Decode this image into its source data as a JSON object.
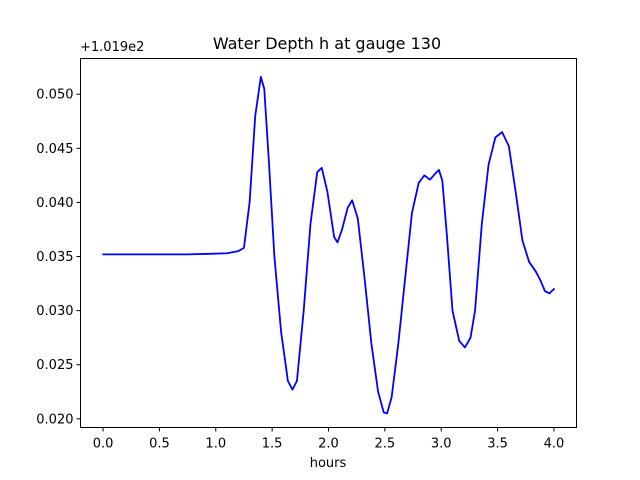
{
  "chart_data": {
    "type": "line",
    "title": "Water Depth h at gauge 130",
    "xlabel": "hours",
    "ylabel": "",
    "y_offset_label": "+1.019e2",
    "xlim": [
      -0.2,
      4.2
    ],
    "ylim": [
      0.0192,
      0.0533
    ],
    "grid": false,
    "legend": "none",
    "x_ticks": [
      0.0,
      0.5,
      1.0,
      1.5,
      2.0,
      2.5,
      3.0,
      3.5,
      4.0
    ],
    "x_tick_labels": [
      "0.0",
      "0.5",
      "1.0",
      "1.5",
      "2.0",
      "2.5",
      "3.0",
      "3.5",
      "4.0"
    ],
    "y_ticks": [
      0.02,
      0.025,
      0.03,
      0.035,
      0.04,
      0.045,
      0.05
    ],
    "y_tick_labels": [
      "0.020",
      "0.025",
      "0.030",
      "0.035",
      "0.040",
      "0.045",
      "0.050"
    ],
    "series": [
      {
        "color": "#0000ff",
        "points": [
          [
            0.0,
            0.0352
          ],
          [
            0.25,
            0.0352
          ],
          [
            0.5,
            0.0352
          ],
          [
            0.75,
            0.0352
          ],
          [
            0.95,
            0.03525
          ],
          [
            1.1,
            0.0353
          ],
          [
            1.2,
            0.0355
          ],
          [
            1.25,
            0.0358
          ],
          [
            1.3,
            0.04
          ],
          [
            1.35,
            0.048
          ],
          [
            1.4,
            0.0516
          ],
          [
            1.43,
            0.0505
          ],
          [
            1.47,
            0.044
          ],
          [
            1.52,
            0.035
          ],
          [
            1.58,
            0.028
          ],
          [
            1.64,
            0.0235
          ],
          [
            1.68,
            0.0227
          ],
          [
            1.72,
            0.0235
          ],
          [
            1.78,
            0.03
          ],
          [
            1.84,
            0.038
          ],
          [
            1.9,
            0.0428
          ],
          [
            1.94,
            0.0432
          ],
          [
            1.99,
            0.041
          ],
          [
            2.05,
            0.0368
          ],
          [
            2.08,
            0.0363
          ],
          [
            2.12,
            0.0375
          ],
          [
            2.17,
            0.0395
          ],
          [
            2.21,
            0.0402
          ],
          [
            2.26,
            0.0385
          ],
          [
            2.32,
            0.033
          ],
          [
            2.38,
            0.027
          ],
          [
            2.44,
            0.0225
          ],
          [
            2.49,
            0.0206
          ],
          [
            2.52,
            0.0205
          ],
          [
            2.56,
            0.022
          ],
          [
            2.62,
            0.027
          ],
          [
            2.68,
            0.033
          ],
          [
            2.74,
            0.039
          ],
          [
            2.8,
            0.0418
          ],
          [
            2.85,
            0.0425
          ],
          [
            2.9,
            0.0421
          ],
          [
            2.95,
            0.0427
          ],
          [
            2.98,
            0.043
          ],
          [
            3.01,
            0.042
          ],
          [
            3.05,
            0.037
          ],
          [
            3.1,
            0.03
          ],
          [
            3.16,
            0.0272
          ],
          [
            3.21,
            0.0266
          ],
          [
            3.26,
            0.0275
          ],
          [
            3.3,
            0.03
          ],
          [
            3.36,
            0.038
          ],
          [
            3.42,
            0.0435
          ],
          [
            3.48,
            0.046
          ],
          [
            3.54,
            0.0465
          ],
          [
            3.6,
            0.0452
          ],
          [
            3.66,
            0.041
          ],
          [
            3.72,
            0.0365
          ],
          [
            3.78,
            0.0345
          ],
          [
            3.84,
            0.0336
          ],
          [
            3.88,
            0.0328
          ],
          [
            3.92,
            0.0318
          ],
          [
            3.96,
            0.0316
          ],
          [
            4.0,
            0.032
          ]
        ]
      }
    ]
  }
}
